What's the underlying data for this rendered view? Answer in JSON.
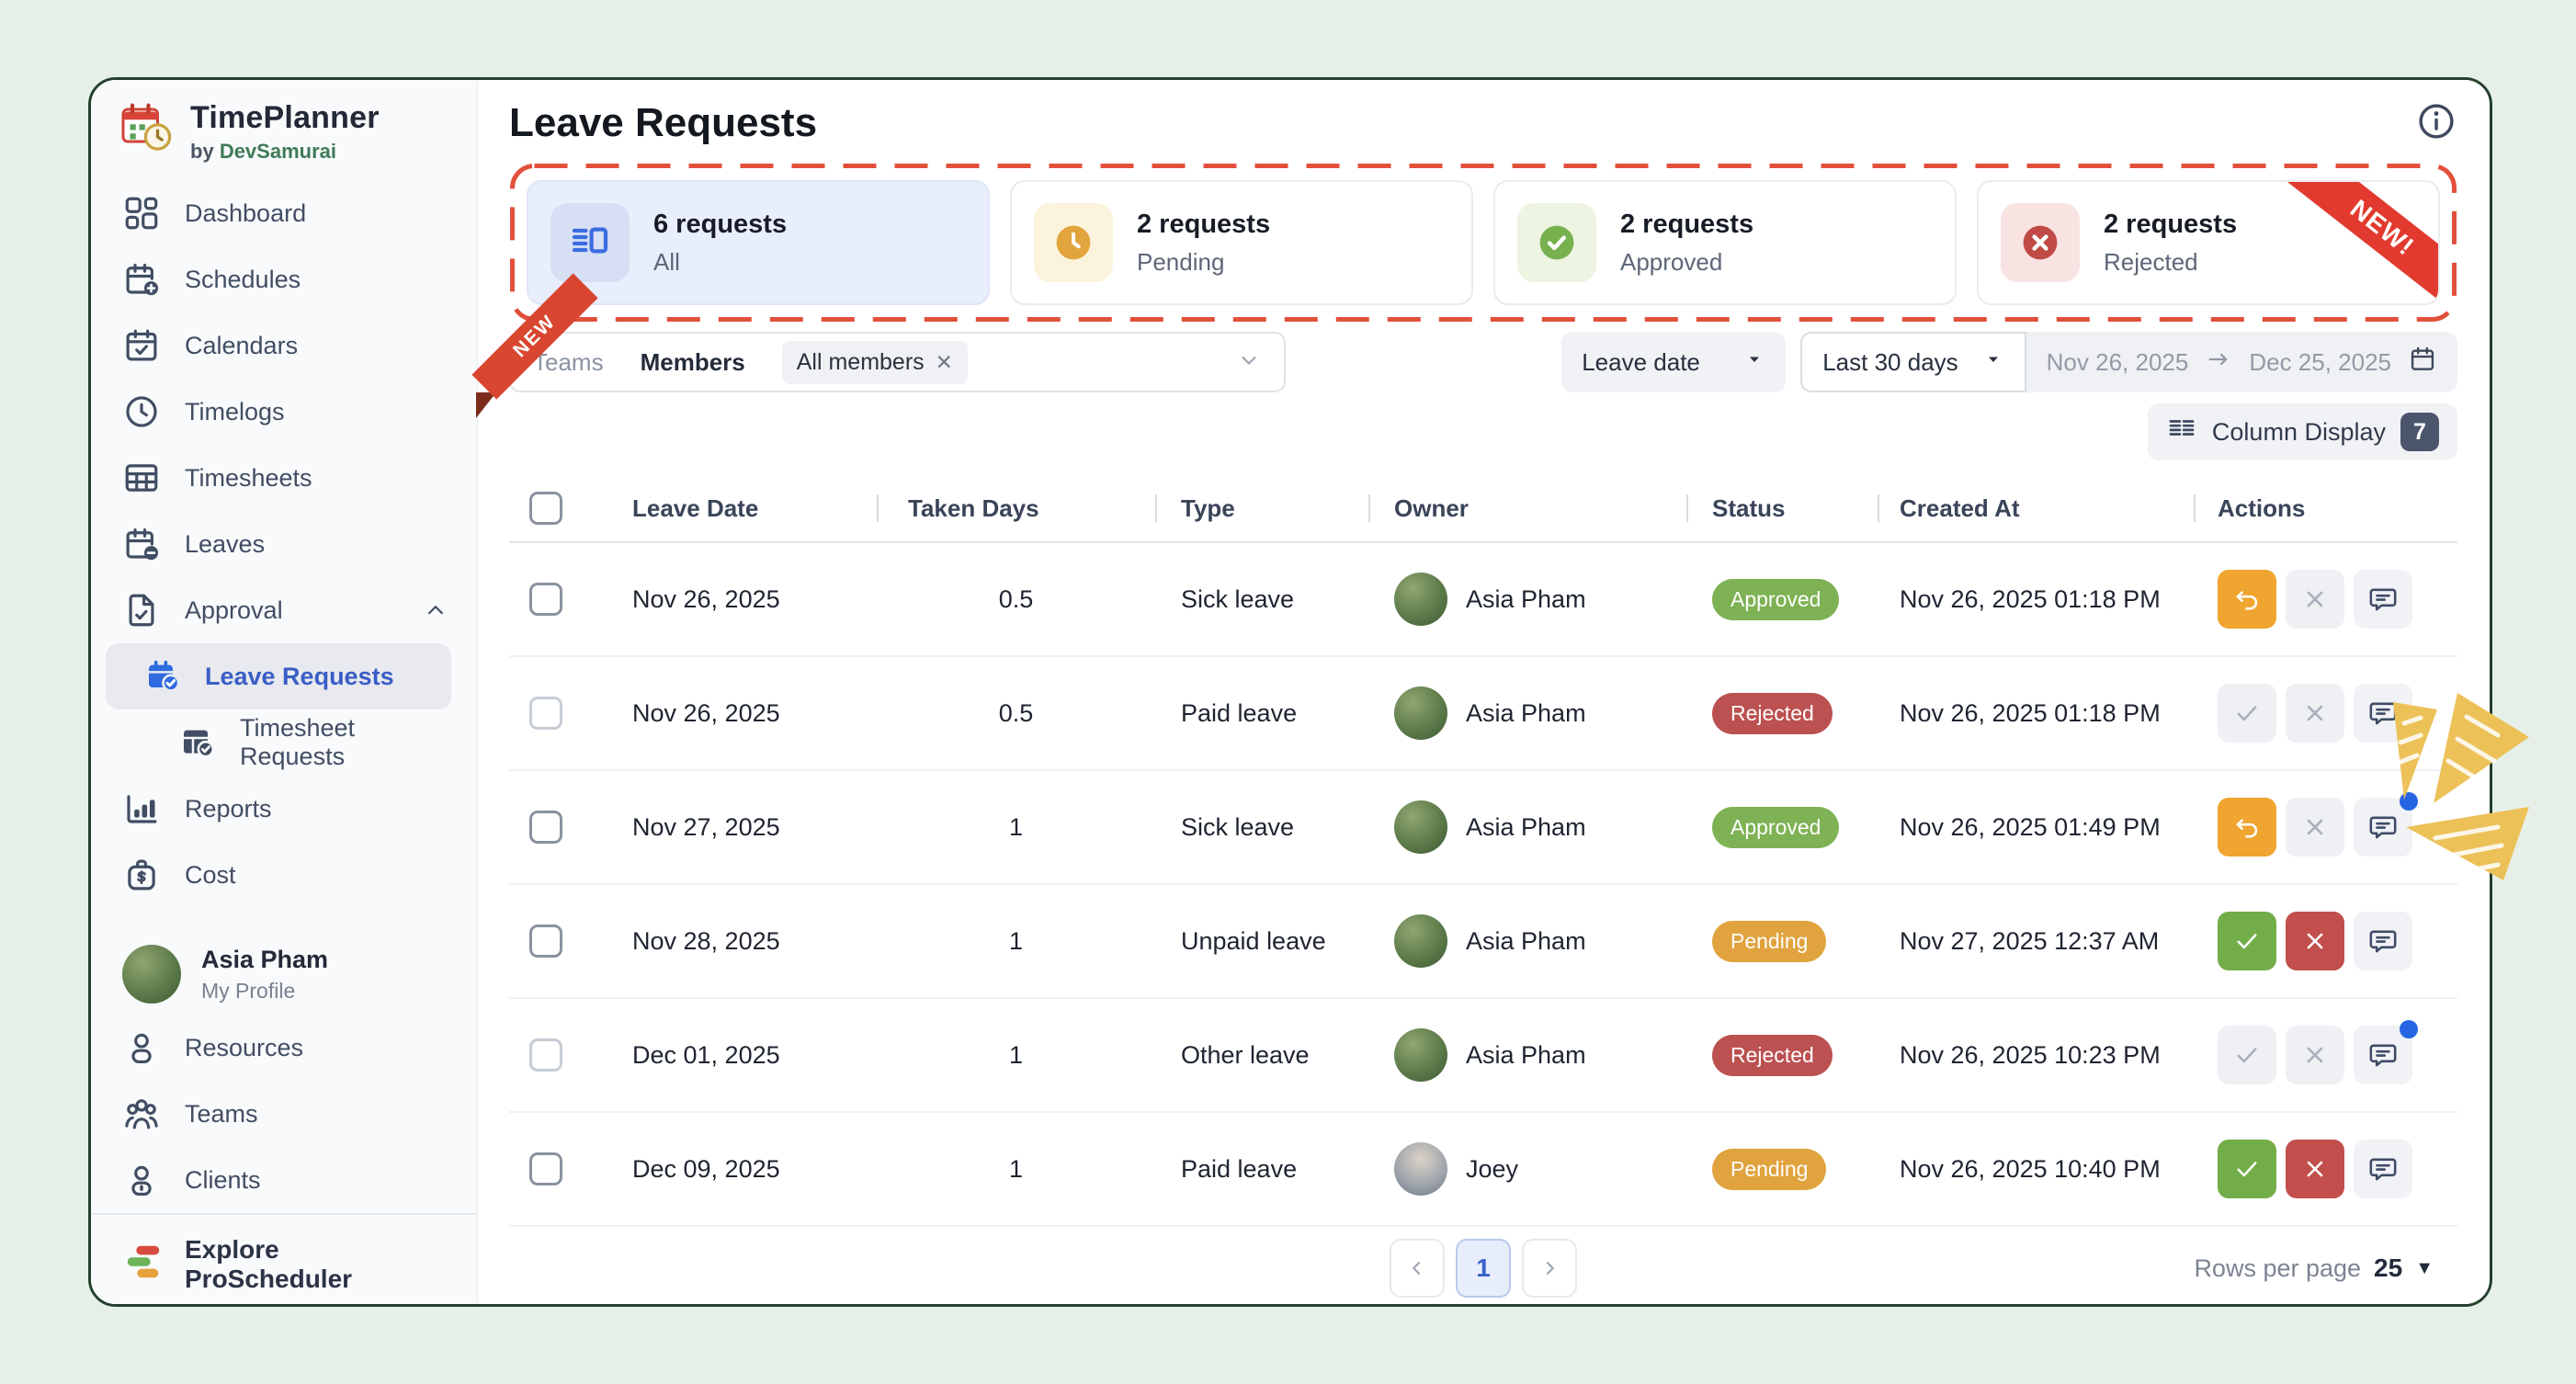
{
  "app": {
    "name": "TimePlanner",
    "byline_prefix": "by",
    "byline_brand": "DevSamurai"
  },
  "window": {
    "title": "Leave Requests"
  },
  "sidebar": {
    "nav": [
      {
        "label": "Dashboard",
        "icon": "dashboard"
      },
      {
        "label": "Schedules",
        "icon": "calendar-plus"
      },
      {
        "label": "Calendars",
        "icon": "calendar-check"
      },
      {
        "label": "Timelogs",
        "icon": "clock"
      },
      {
        "label": "Timesheets",
        "icon": "table"
      },
      {
        "label": "Leaves",
        "icon": "calendar-minus"
      },
      {
        "label": "Approval",
        "icon": "doc-check",
        "expanded": true
      },
      {
        "label": "Leave Requests",
        "icon": "calendar-check-filled",
        "sub": true,
        "active": true
      },
      {
        "label": "Timesheet Requests",
        "icon": "grid-check",
        "sub": true
      },
      {
        "label": "Reports",
        "icon": "bar-chart"
      },
      {
        "label": "Cost",
        "icon": "money-bag"
      }
    ],
    "profile": {
      "name": "Asia Pham",
      "subtitle": "My Profile"
    },
    "nav_secondary": [
      {
        "label": "Resources",
        "icon": "person"
      },
      {
        "label": "Teams",
        "icon": "people"
      },
      {
        "label": "Clients",
        "icon": "person-badge"
      }
    ],
    "footer": {
      "label": "Explore ProScheduler"
    }
  },
  "stats": {
    "cards": [
      {
        "count": "6 requests",
        "label": "All",
        "icon": "list-detail",
        "selected": true
      },
      {
        "count": "2 requests",
        "label": "Pending",
        "icon": "clock-solid"
      },
      {
        "count": "2 requests",
        "label": "Approved",
        "icon": "check-solid"
      },
      {
        "count": "2 requests",
        "label": "Rejected",
        "icon": "x-solid",
        "ribbon": "NEW!"
      }
    ]
  },
  "filters": {
    "ribbon": "NEW",
    "scope_tabs": [
      {
        "label": "Teams"
      },
      {
        "label": "Members",
        "active": true
      }
    ],
    "selected_chip": {
      "label": "All members"
    },
    "sort_field": "Leave date",
    "date_preset": "Last 30 days",
    "date_from": "Nov 26, 2025",
    "date_to": "Dec 25, 2025",
    "column_display": {
      "label": "Column Display",
      "count": "7"
    }
  },
  "table": {
    "columns": [
      "Leave Date",
      "Taken Days",
      "Type",
      "Owner",
      "Status",
      "Created At",
      "Actions"
    ],
    "rows": [
      {
        "leave_date": "Nov 26, 2025",
        "taken_days": "0.5",
        "type": "Sick leave",
        "owner": "Asia Pham",
        "status": "Approved",
        "created_at": "Nov 26, 2025 01:18 PM",
        "actions": "undo",
        "unread": false
      },
      {
        "leave_date": "Nov 26, 2025",
        "taken_days": "0.5",
        "type": "Paid leave",
        "owner": "Asia Pham",
        "status": "Rejected",
        "created_at": "Nov 26, 2025 01:18 PM",
        "actions": "resolved",
        "unread": false
      },
      {
        "leave_date": "Nov 27, 2025",
        "taken_days": "1",
        "type": "Sick leave",
        "owner": "Asia Pham",
        "status": "Approved",
        "created_at": "Nov 26, 2025 01:49 PM",
        "actions": "undo",
        "unread": true
      },
      {
        "leave_date": "Nov 28, 2025",
        "taken_days": "1",
        "type": "Unpaid leave",
        "owner": "Asia Pham",
        "status": "Pending",
        "created_at": "Nov 27, 2025 12:37 AM",
        "actions": "pending",
        "unread": false
      },
      {
        "leave_date": "Dec 01, 2025",
        "taken_days": "1",
        "type": "Other leave",
        "owner": "Asia Pham",
        "status": "Rejected",
        "created_at": "Nov 26, 2025 10:23 PM",
        "actions": "resolved",
        "unread": true
      },
      {
        "leave_date": "Dec 09, 2025",
        "taken_days": "1",
        "type": "Paid leave",
        "owner": "Joey",
        "status": "Pending",
        "created_at": "Nov 26, 2025 10:40 PM",
        "actions": "pending",
        "unread": false
      }
    ]
  },
  "pagination": {
    "page": "1",
    "rows_per_page_label": "Rows per page",
    "rows_per_page": "25"
  },
  "colors": {
    "approved": "#7eb254",
    "rejected": "#bb5150",
    "pending": "#e0a33e",
    "accent_blue": "#3a5ec6",
    "brand_green": "#3f7a58",
    "alert_red": "#e2503c",
    "window_border_green": "#23402c",
    "undo_orange": "#efa52f"
  }
}
